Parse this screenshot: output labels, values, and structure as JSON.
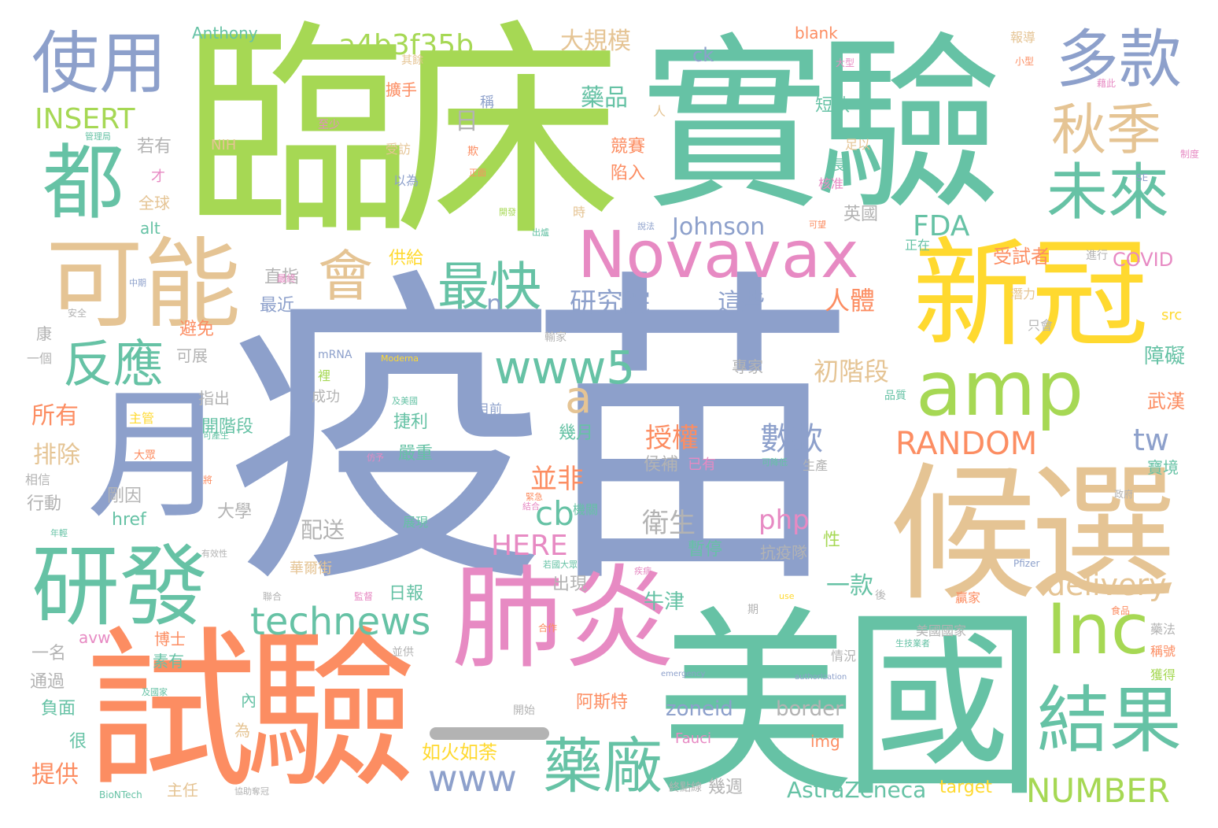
{
  "palette": {
    "green": "#66c2a5",
    "orange": "#fc8d62",
    "blue": "#8da0cb",
    "pink": "#e78ac3",
    "lime": "#a6d854",
    "yellow": "#ffd92f",
    "tan": "#e5c494",
    "gray": "#b3b3b3"
  },
  "words": [
    {
      "text": "疫苗",
      "color": "blue"
    },
    {
      "text": "臨床",
      "color": "lime"
    },
    {
      "text": "實驗",
      "color": "green"
    },
    {
      "text": "美國",
      "color": "green"
    },
    {
      "text": "試驗",
      "color": "orange"
    },
    {
      "text": "候選",
      "color": "tan"
    },
    {
      "text": "肺炎",
      "color": "pink"
    },
    {
      "text": "新冠",
      "color": "yellow"
    },
    {
      "text": "Novavax",
      "color": "pink"
    },
    {
      "text": "可能",
      "color": "tan"
    },
    {
      "text": "研發",
      "color": "green"
    },
    {
      "text": "amp",
      "color": "lime"
    },
    {
      "text": "使用",
      "color": "blue"
    },
    {
      "text": "都",
      "color": "green"
    },
    {
      "text": "月",
      "color": "blue"
    },
    {
      "text": "多款",
      "color": "blue"
    },
    {
      "text": "秋季",
      "color": "tan"
    },
    {
      "text": "未來",
      "color": "green"
    },
    {
      "text": "Inc",
      "color": "lime"
    },
    {
      "text": "結果",
      "color": "green"
    },
    {
      "text": "藥廠",
      "color": "green"
    },
    {
      "text": "反應",
      "color": "green"
    },
    {
      "text": "最快",
      "color": "green"
    },
    {
      "text": "會",
      "color": "tan"
    },
    {
      "text": "www5",
      "color": "green"
    },
    {
      "text": "technews",
      "color": "green"
    },
    {
      "text": "www",
      "color": "blue"
    },
    {
      "text": "NUMBER",
      "color": "lime"
    },
    {
      "text": "RANDOM",
      "color": "orange"
    },
    {
      "text": "a4b3f35b",
      "color": "lime"
    },
    {
      "text": "INSERT",
      "color": "lime"
    },
    {
      "text": "Johnson",
      "color": "blue"
    },
    {
      "text": "delivery",
      "color": "tan"
    },
    {
      "text": "HERE",
      "color": "pink"
    },
    {
      "text": "AstraZeneca",
      "color": "green"
    },
    {
      "text": "FDA",
      "color": "green"
    },
    {
      "text": "php",
      "color": "pink"
    },
    {
      "text": "cb",
      "color": "green"
    },
    {
      "text": "tw",
      "color": "blue"
    },
    {
      "text": "a",
      "color": "tan"
    },
    {
      "text": "n",
      "color": "blue"
    },
    {
      "text": "zoneid",
      "color": "blue"
    },
    {
      "text": "border",
      "color": "gray"
    },
    {
      "text": "研究院",
      "color": "blue"
    },
    {
      "text": "初階段",
      "color": "tan"
    },
    {
      "text": "數款",
      "color": "blue"
    },
    {
      "text": "授權",
      "color": "orange"
    },
    {
      "text": "衛生",
      "color": "gray"
    },
    {
      "text": "並非",
      "color": "orange"
    },
    {
      "text": "人體",
      "color": "orange"
    },
    {
      "text": "這些",
      "color": "blue"
    },
    {
      "text": "大規模",
      "color": "tan"
    },
    {
      "text": "藥品",
      "color": "green"
    },
    {
      "text": "日",
      "color": "gray"
    },
    {
      "text": "所有",
      "color": "orange"
    },
    {
      "text": "排除",
      "color": "tan"
    },
    {
      "text": "提供",
      "color": "orange"
    },
    {
      "text": "受試者",
      "color": "orange"
    },
    {
      "text": "障礙",
      "color": "green"
    },
    {
      "text": "武漢",
      "color": "orange"
    },
    {
      "text": "一款",
      "color": "green"
    },
    {
      "text": "牛津",
      "color": "green"
    },
    {
      "text": "如火如荼",
      "color": "yellow"
    },
    {
      "text": "阿斯特",
      "color": "orange"
    },
    {
      "text": "幾週",
      "color": "gray"
    },
    {
      "text": "COVID",
      "color": "pink"
    },
    {
      "text": "Anthony",
      "color": "green"
    },
    {
      "text": "ck",
      "color": "blue"
    },
    {
      "text": "blank",
      "color": "orange"
    },
    {
      "text": "NIH",
      "color": "tan"
    },
    {
      "text": "alt",
      "color": "green"
    },
    {
      "text": "href",
      "color": "green"
    },
    {
      "text": "avw",
      "color": "pink"
    },
    {
      "text": "img",
      "color": "orange"
    },
    {
      "text": "target",
      "color": "yellow"
    },
    {
      "text": "Fauci",
      "color": "pink"
    },
    {
      "text": "src",
      "color": "yellow"
    },
    {
      "text": "mRNA",
      "color": "blue"
    },
    {
      "text": "Moderna",
      "color": "yellow"
    },
    {
      "text": "Pfizer",
      "color": "blue"
    },
    {
      "text": "BioNTech",
      "color": "green"
    },
    {
      "text": "emergency",
      "color": "blue"
    },
    {
      "text": "authorization",
      "color": "blue"
    },
    {
      "text": "SE",
      "color": "blue"
    },
    {
      "text": "若有",
      "color": "gray"
    },
    {
      "text": "全球",
      "color": "tan"
    },
    {
      "text": "才",
      "color": "pink"
    },
    {
      "text": "擴手",
      "color": "orange"
    },
    {
      "text": "稱",
      "color": "blue"
    },
    {
      "text": "短缺",
      "color": "green"
    },
    {
      "text": "競賽",
      "color": "orange"
    },
    {
      "text": "陷入",
      "color": "orange"
    },
    {
      "text": "英國",
      "color": "gray"
    },
    {
      "text": "供給",
      "color": "yellow"
    },
    {
      "text": "直指",
      "color": "gray"
    },
    {
      "text": "最近",
      "color": "blue"
    },
    {
      "text": "避免",
      "color": "orange"
    },
    {
      "text": "可展",
      "color": "gray"
    },
    {
      "text": "指出",
      "color": "gray"
    },
    {
      "text": "開階段",
      "color": "green"
    },
    {
      "text": "剛因",
      "color": "gray"
    },
    {
      "text": "行動",
      "color": "gray"
    },
    {
      "text": "大學",
      "color": "gray"
    },
    {
      "text": "配送",
      "color": "gray"
    },
    {
      "text": "日報",
      "color": "green"
    },
    {
      "text": "出現",
      "color": "gray"
    },
    {
      "text": "幾月",
      "color": "green"
    },
    {
      "text": "嚴重",
      "color": "green"
    },
    {
      "text": "捷利",
      "color": "green"
    },
    {
      "text": "侯補",
      "color": "gray"
    },
    {
      "text": "已有",
      "color": "pink"
    },
    {
      "text": "暫停",
      "color": "green"
    },
    {
      "text": "性",
      "color": "lime"
    },
    {
      "text": "抗疫隊",
      "color": "gray"
    },
    {
      "text": "專家",
      "color": "gray"
    },
    {
      "text": "寶境",
      "color": "green"
    },
    {
      "text": "生產",
      "color": "gray"
    },
    {
      "text": "美國國家",
      "color": "gray"
    },
    {
      "text": "稱號",
      "color": "orange"
    },
    {
      "text": "獲得",
      "color": "lime"
    },
    {
      "text": "情況",
      "color": "gray"
    },
    {
      "text": "一名",
      "color": "gray"
    },
    {
      "text": "通過",
      "color": "gray"
    },
    {
      "text": "負面",
      "color": "green"
    },
    {
      "text": "很",
      "color": "green"
    },
    {
      "text": "主任",
      "color": "tan"
    },
    {
      "text": "博士",
      "color": "orange"
    },
    {
      "text": "素有",
      "color": "green"
    },
    {
      "text": "內",
      "color": "green"
    },
    {
      "text": "為",
      "color": "tan"
    },
    {
      "text": "成功",
      "color": "gray"
    },
    {
      "text": "康",
      "color": "gray"
    },
    {
      "text": "一個",
      "color": "gray"
    },
    {
      "text": "主管",
      "color": "yellow"
    },
    {
      "text": "大眾",
      "color": "orange"
    },
    {
      "text": "相信",
      "color": "gray"
    },
    {
      "text": "展現",
      "color": "green"
    },
    {
      "text": "華爾街",
      "color": "tan"
    },
    {
      "text": "目前",
      "color": "blue"
    },
    {
      "text": "報導",
      "color": "tan"
    },
    {
      "text": "長",
      "color": "green"
    },
    {
      "text": "核准",
      "color": "pink"
    },
    {
      "text": "正在",
      "color": "green"
    },
    {
      "text": "潛力",
      "color": "tan"
    },
    {
      "text": "只會",
      "color": "gray"
    },
    {
      "text": "品質",
      "color": "green"
    },
    {
      "text": "贏家",
      "color": "orange"
    },
    {
      "text": "足以",
      "color": "tan"
    },
    {
      "text": "受訪",
      "color": "tan"
    },
    {
      "text": "以為",
      "color": "blue"
    },
    {
      "text": "至少",
      "color": "pink"
    },
    {
      "text": "其餘",
      "color": "tan"
    },
    {
      "text": "時",
      "color": "tan"
    },
    {
      "text": "人",
      "color": "tan"
    },
    {
      "text": "進行",
      "color": "gray"
    },
    {
      "text": "輸家",
      "color": "gray"
    },
    {
      "text": "並供",
      "color": "gray"
    },
    {
      "text": "開始",
      "color": "gray"
    },
    {
      "text": "後",
      "color": "gray"
    },
    {
      "text": "期",
      "color": "gray"
    },
    {
      "text": "合作",
      "color": "orange"
    },
    {
      "text": "小型",
      "color": "orange"
    },
    {
      "text": "大型",
      "color": "pink"
    },
    {
      "text": "藉此",
      "color": "pink"
    },
    {
      "text": "制度",
      "color": "pink"
    },
    {
      "text": "政府",
      "color": "gray"
    },
    {
      "text": "食品",
      "color": "orange"
    },
    {
      "text": "藥法",
      "color": "gray"
    },
    {
      "text": "安全",
      "color": "gray"
    },
    {
      "text": "中期",
      "color": "blue"
    },
    {
      "text": "最終",
      "color": "pink"
    },
    {
      "text": "將",
      "color": "orange"
    },
    {
      "text": "有效性",
      "color": "gray"
    },
    {
      "text": "聯合",
      "color": "gray"
    },
    {
      "text": "監督",
      "color": "pink"
    },
    {
      "text": "管理局",
      "color": "green"
    },
    {
      "text": "正面",
      "color": "orange"
    },
    {
      "text": "欺",
      "color": "orange"
    },
    {
      "text": "開發",
      "color": "lime"
    },
    {
      "text": "出爐",
      "color": "green"
    },
    {
      "text": "可望",
      "color": "orange"
    },
    {
      "text": "說法",
      "color": "blue"
    },
    {
      "text": "可產生",
      "color": "green"
    },
    {
      "text": "可降低",
      "color": "green"
    },
    {
      "text": "終點線",
      "color": "gray"
    },
    {
      "text": "協助奪冠",
      "color": "gray"
    },
    {
      "text": "生技業者",
      "color": "green"
    },
    {
      "text": "及國家",
      "color": "green"
    },
    {
      "text": "年輕",
      "color": "green"
    },
    {
      "text": "仿予",
      "color": "pink"
    },
    {
      "text": "機關",
      "color": "green"
    },
    {
      "text": "結合",
      "color": "pink"
    },
    {
      "text": "緊急",
      "color": "orange"
    },
    {
      "text": "及美國",
      "color": "green"
    },
    {
      "text": "若國大眾",
      "color": "green"
    },
    {
      "text": "疾病",
      "color": "pink"
    },
    {
      "text": "use",
      "color": "yellow"
    },
    {
      "text": "裡",
      "color": "lime"
    }
  ]
}
